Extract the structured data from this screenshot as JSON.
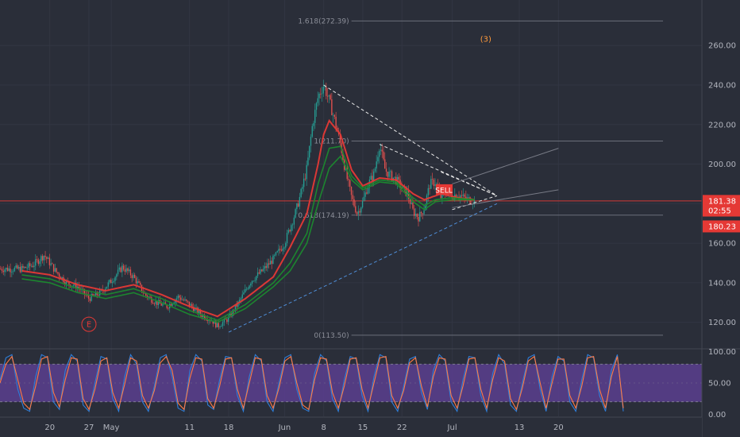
{
  "chart_data": [
    {
      "type": "candlestick",
      "price_axis": {
        "range": [
          107,
          283
        ],
        "ticks": [
          "120.00",
          "140.00",
          "160.00",
          "180.00",
          "200.00",
          "220.00",
          "240.00",
          "260.00"
        ]
      },
      "time_axis": {
        "labels": [
          {
            "text": "20",
            "day": 20
          },
          {
            "text": "27",
            "day": 27
          },
          {
            "text": "May",
            "day": 31
          },
          {
            "text": "11",
            "day": 45
          },
          {
            "text": "18",
            "day": 52
          },
          {
            "text": "Jun",
            "day": 62
          },
          {
            "text": "8",
            "day": 69
          },
          {
            "text": "15",
            "day": 76
          },
          {
            "text": "22",
            "day": 83
          },
          {
            "text": "Jul",
            "day": 92
          },
          {
            "text": "13",
            "day": 104
          },
          {
            "text": "20",
            "day": 111
          }
        ]
      },
      "close_path": [
        [
          15,
          147
        ],
        [
          17,
          149
        ],
        [
          19,
          154
        ],
        [
          21,
          146
        ],
        [
          23,
          140
        ],
        [
          25,
          138
        ],
        [
          27,
          132
        ],
        [
          29,
          135
        ],
        [
          31,
          141
        ],
        [
          33,
          148
        ],
        [
          35,
          143
        ],
        [
          37,
          134
        ],
        [
          39,
          130
        ],
        [
          41,
          128
        ],
        [
          43,
          133
        ],
        [
          45,
          129
        ],
        [
          47,
          124
        ],
        [
          49,
          121
        ],
        [
          50,
          118
        ],
        [
          52,
          122
        ],
        [
          54,
          131
        ],
        [
          56,
          141
        ],
        [
          58,
          146
        ],
        [
          60,
          152
        ],
        [
          62,
          160
        ],
        [
          64,
          176
        ],
        [
          65,
          186
        ],
        [
          66,
          198
        ],
        [
          67,
          220
        ],
        [
          68,
          234
        ],
        [
          69,
          240
        ],
        [
          70,
          232
        ],
        [
          71,
          222
        ],
        [
          72,
          210
        ],
        [
          73,
          195
        ],
        [
          74,
          183
        ],
        [
          75,
          175
        ],
        [
          76,
          181
        ],
        [
          77,
          190
        ],
        [
          78,
          195
        ],
        [
          79,
          210
        ],
        [
          80,
          197
        ],
        [
          81,
          194
        ],
        [
          82,
          192
        ],
        [
          83,
          188
        ],
        [
          84,
          185
        ],
        [
          85,
          176
        ],
        [
          86,
          173
        ],
        [
          87,
          178
        ],
        [
          88,
          190
        ],
        [
          89,
          191
        ],
        [
          90,
          183
        ],
        [
          91,
          186
        ],
        [
          92,
          184
        ],
        [
          93,
          185
        ],
        [
          94,
          183
        ],
        [
          95,
          182
        ],
        [
          96,
          181.4
        ]
      ],
      "moving_averages": [
        {
          "name": "",
          "color": "#e53935",
          "path": [
            [
              15,
              146
            ],
            [
              20,
              144
            ],
            [
              25,
              139
            ],
            [
              30,
              136
            ],
            [
              35,
              139
            ],
            [
              40,
              134
            ],
            [
              45,
              128
            ],
            [
              50,
              123
            ],
            [
              55,
              132
            ],
            [
              60,
              143
            ],
            [
              63,
              158
            ],
            [
              66,
              175
            ],
            [
              68,
              200
            ],
            [
              69,
              215
            ],
            [
              70,
              222
            ],
            [
              72,
              215
            ],
            [
              74,
              197
            ],
            [
              76,
              189
            ],
            [
              79,
              193
            ],
            [
              82,
              192
            ],
            [
              85,
              185
            ],
            [
              87,
              182
            ],
            [
              90,
              185
            ],
            [
              93,
              183
            ],
            [
              96,
              182
            ]
          ]
        },
        {
          "name": "",
          "color": "#1b8a2e",
          "path": [
            [
              15,
              144
            ],
            [
              20,
              142
            ],
            [
              25,
              137
            ],
            [
              30,
              134
            ],
            [
              35,
              137
            ],
            [
              40,
              132
            ],
            [
              45,
              126
            ],
            [
              50,
              121
            ],
            [
              55,
              129
            ],
            [
              60,
              140
            ],
            [
              63,
              150
            ],
            [
              66,
              165
            ],
            [
              68,
              190
            ],
            [
              70,
              208
            ],
            [
              72,
              209
            ],
            [
              74,
              194
            ],
            [
              76,
              188
            ],
            [
              79,
              192
            ],
            [
              82,
              191
            ],
            [
              85,
              183
            ],
            [
              87,
              179
            ],
            [
              89,
              182
            ],
            [
              92,
              183
            ],
            [
              96,
              182
            ]
          ]
        },
        {
          "name": "",
          "color": "#1b8a2e",
          "path": [
            [
              15,
              142
            ],
            [
              20,
              140
            ],
            [
              25,
              135
            ],
            [
              30,
              132
            ],
            [
              35,
              135
            ],
            [
              40,
              130
            ],
            [
              45,
              124
            ],
            [
              50,
              120
            ],
            [
              55,
              127
            ],
            [
              60,
              138
            ],
            [
              63,
              146
            ],
            [
              66,
              160
            ],
            [
              68,
              180
            ],
            [
              70,
              198
            ],
            [
              72,
              204
            ],
            [
              74,
              192
            ],
            [
              76,
              187
            ],
            [
              79,
              191
            ],
            [
              82,
              190
            ],
            [
              85,
              181
            ],
            [
              87,
              177
            ],
            [
              89,
              181
            ],
            [
              92,
              182
            ],
            [
              96,
              182
            ]
          ]
        }
      ],
      "trendlines": [
        {
          "style": "dashed",
          "color": "#e8e8e8",
          "from": [
            69,
            240
          ],
          "to": [
            100,
            184
          ]
        },
        {
          "style": "dashed",
          "color": "#e8e8e8",
          "from": [
            79,
            210
          ],
          "to": [
            100,
            184
          ]
        },
        {
          "style": "dashed",
          "color": "#e8e8e8",
          "from": [
            90,
            196
          ],
          "to": [
            100,
            184
          ]
        },
        {
          "style": "dashed",
          "color": "#e8e8e8",
          "from": [
            92,
            177
          ],
          "to": [
            100,
            184
          ]
        },
        {
          "style": "dashed",
          "color": "#4f8ed8",
          "from": [
            52,
            115
          ],
          "to": [
            100,
            180
          ]
        },
        {
          "style": "solid",
          "color": "#787b86",
          "from": [
            92,
            190
          ],
          "to": [
            111,
            208
          ]
        },
        {
          "style": "solid",
          "color": "#787b86",
          "from": [
            92,
            178
          ],
          "to": [
            111,
            187
          ]
        }
      ],
      "fib_levels": [
        {
          "label": "1.618(272.39)",
          "price": 272.39
        },
        {
          "label": "1(211.70)",
          "price": 211.7
        },
        {
          "label": "0.618(174.19)",
          "price": 174.19
        },
        {
          "label": "0(113.50)",
          "price": 113.5
        }
      ],
      "price_line": {
        "price": 181.38,
        "color": "#e53935"
      },
      "price_badges": [
        {
          "text": "181.38",
          "price": 181.38,
          "color": "#e53935"
        },
        {
          "text": "02:55",
          "price": 176.5,
          "color": "#e53935"
        },
        {
          "text": "180.23",
          "price": 168.5,
          "color": "#e53935"
        }
      ],
      "annotations": [
        {
          "text": "(3)",
          "day": 98,
          "price": 262,
          "color": "#ff9a3c"
        },
        {
          "text": "E",
          "day": 27,
          "price": 119,
          "color": "#e53935",
          "shape": "circle"
        },
        {
          "text": "SELL",
          "day": 90.5,
          "price": 187,
          "color": "#e53935",
          "shape": "box"
        }
      ]
    },
    {
      "type": "line",
      "indicator": "stochastic",
      "ylim": [
        -3,
        103
      ],
      "ticks": [
        "100.00",
        "50.00",
        "0.00"
      ],
      "band": {
        "upper": 80,
        "lower": 20,
        "fill": "#5a3e8f"
      },
      "series": [
        {
          "name": "",
          "color": "#2f7ed8",
          "values": [
            55,
            90,
            95,
            40,
            10,
            5,
            60,
            95,
            90,
            20,
            8,
            70,
            95,
            85,
            15,
            5,
            50,
            92,
            88,
            25,
            5,
            60,
            95,
            80,
            20,
            5,
            45,
            90,
            95,
            60,
            10,
            5,
            70,
            95,
            85,
            15,
            8,
            55,
            92,
            90,
            30,
            5,
            60,
            95,
            85,
            20,
            5,
            50,
            90,
            95,
            40,
            10,
            5,
            65,
            95,
            85,
            25,
            5,
            55,
            92,
            88,
            30,
            5,
            60,
            95,
            90,
            20,
            5,
            45,
            88,
            92,
            35,
            8,
            70,
            95,
            85,
            20,
            5,
            55,
            92,
            90,
            30,
            5,
            65,
            95,
            80,
            15,
            5,
            50,
            90,
            95,
            40,
            5,
            60,
            92,
            85,
            20,
            5,
            55,
            95,
            90,
            30,
            5,
            70,
            95,
            5
          ]
        },
        {
          "name": "",
          "color": "#ff7a45",
          "values": [
            50,
            80,
            92,
            55,
            18,
            8,
            45,
            88,
            92,
            35,
            12,
            55,
            90,
            88,
            25,
            8,
            40,
            85,
            90,
            35,
            10,
            48,
            90,
            85,
            30,
            10,
            38,
            82,
            92,
            70,
            18,
            8,
            58,
            90,
            88,
            25,
            10,
            45,
            88,
            90,
            40,
            10,
            50,
            90,
            88,
            30,
            10,
            42,
            85,
            92,
            50,
            15,
            8,
            55,
            90,
            88,
            35,
            10,
            45,
            88,
            90,
            40,
            10,
            50,
            90,
            92,
            30,
            10,
            38,
            82,
            90,
            45,
            12,
            60,
            90,
            88,
            30,
            10,
            45,
            88,
            90,
            40,
            10,
            55,
            90,
            85,
            25,
            8,
            42,
            85,
            92,
            50,
            10,
            50,
            88,
            88,
            30,
            10,
            45,
            90,
            92,
            40,
            10,
            60,
            92,
            10
          ]
        }
      ]
    }
  ]
}
